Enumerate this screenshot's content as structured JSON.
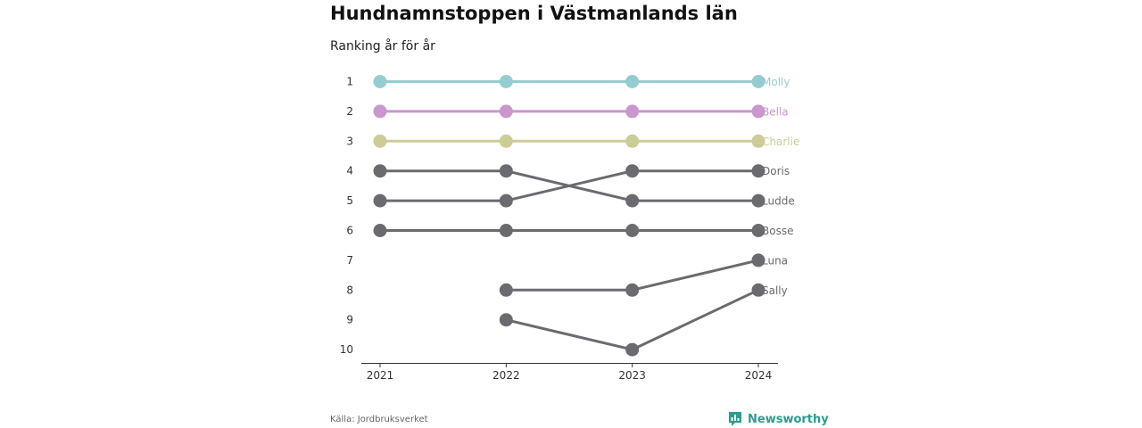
{
  "chart_data": {
    "type": "line",
    "title": "Hundnamnstoppen i Västmanlands län",
    "subtitle": "Ranking år för år",
    "x": [
      "2021",
      "2022",
      "2023",
      "2024"
    ],
    "y_ticks": [
      "1",
      "2",
      "3",
      "4",
      "5",
      "6",
      "7",
      "8",
      "9",
      "10"
    ],
    "ylim": [
      1,
      10
    ],
    "y_reversed": true,
    "grid": false,
    "series": [
      {
        "name": "Molly",
        "values": [
          1,
          1,
          1,
          1
        ],
        "color": "#95cdcf"
      },
      {
        "name": "Bella",
        "values": [
          2,
          2,
          2,
          2
        ],
        "color": "#c997cc"
      },
      {
        "name": "Charlie",
        "values": [
          3,
          3,
          3,
          3
        ],
        "color": "#cbcc98"
      },
      {
        "name": "Doris",
        "values": [
          5,
          5,
          4,
          4
        ],
        "color": "#6b6a6f"
      },
      {
        "name": "Ludde",
        "values": [
          4,
          4,
          5,
          5
        ],
        "color": "#6b6a6f"
      },
      {
        "name": "Bosse",
        "values": [
          6,
          6,
          6,
          6
        ],
        "color": "#6b6a6f"
      },
      {
        "name": "Luna",
        "values": [
          null,
          8,
          8,
          7
        ],
        "color": "#6b6a6f"
      },
      {
        "name": "Sally",
        "values": [
          null,
          9,
          10,
          8
        ],
        "color": "#6b6a6f"
      }
    ]
  },
  "footer": {
    "source": "Källa: Jordbruksverket",
    "brand": "Newsworthy",
    "brand_color": "#2a9d8f",
    "brand_icon": "bar-chart-speech-bubble-icon"
  }
}
